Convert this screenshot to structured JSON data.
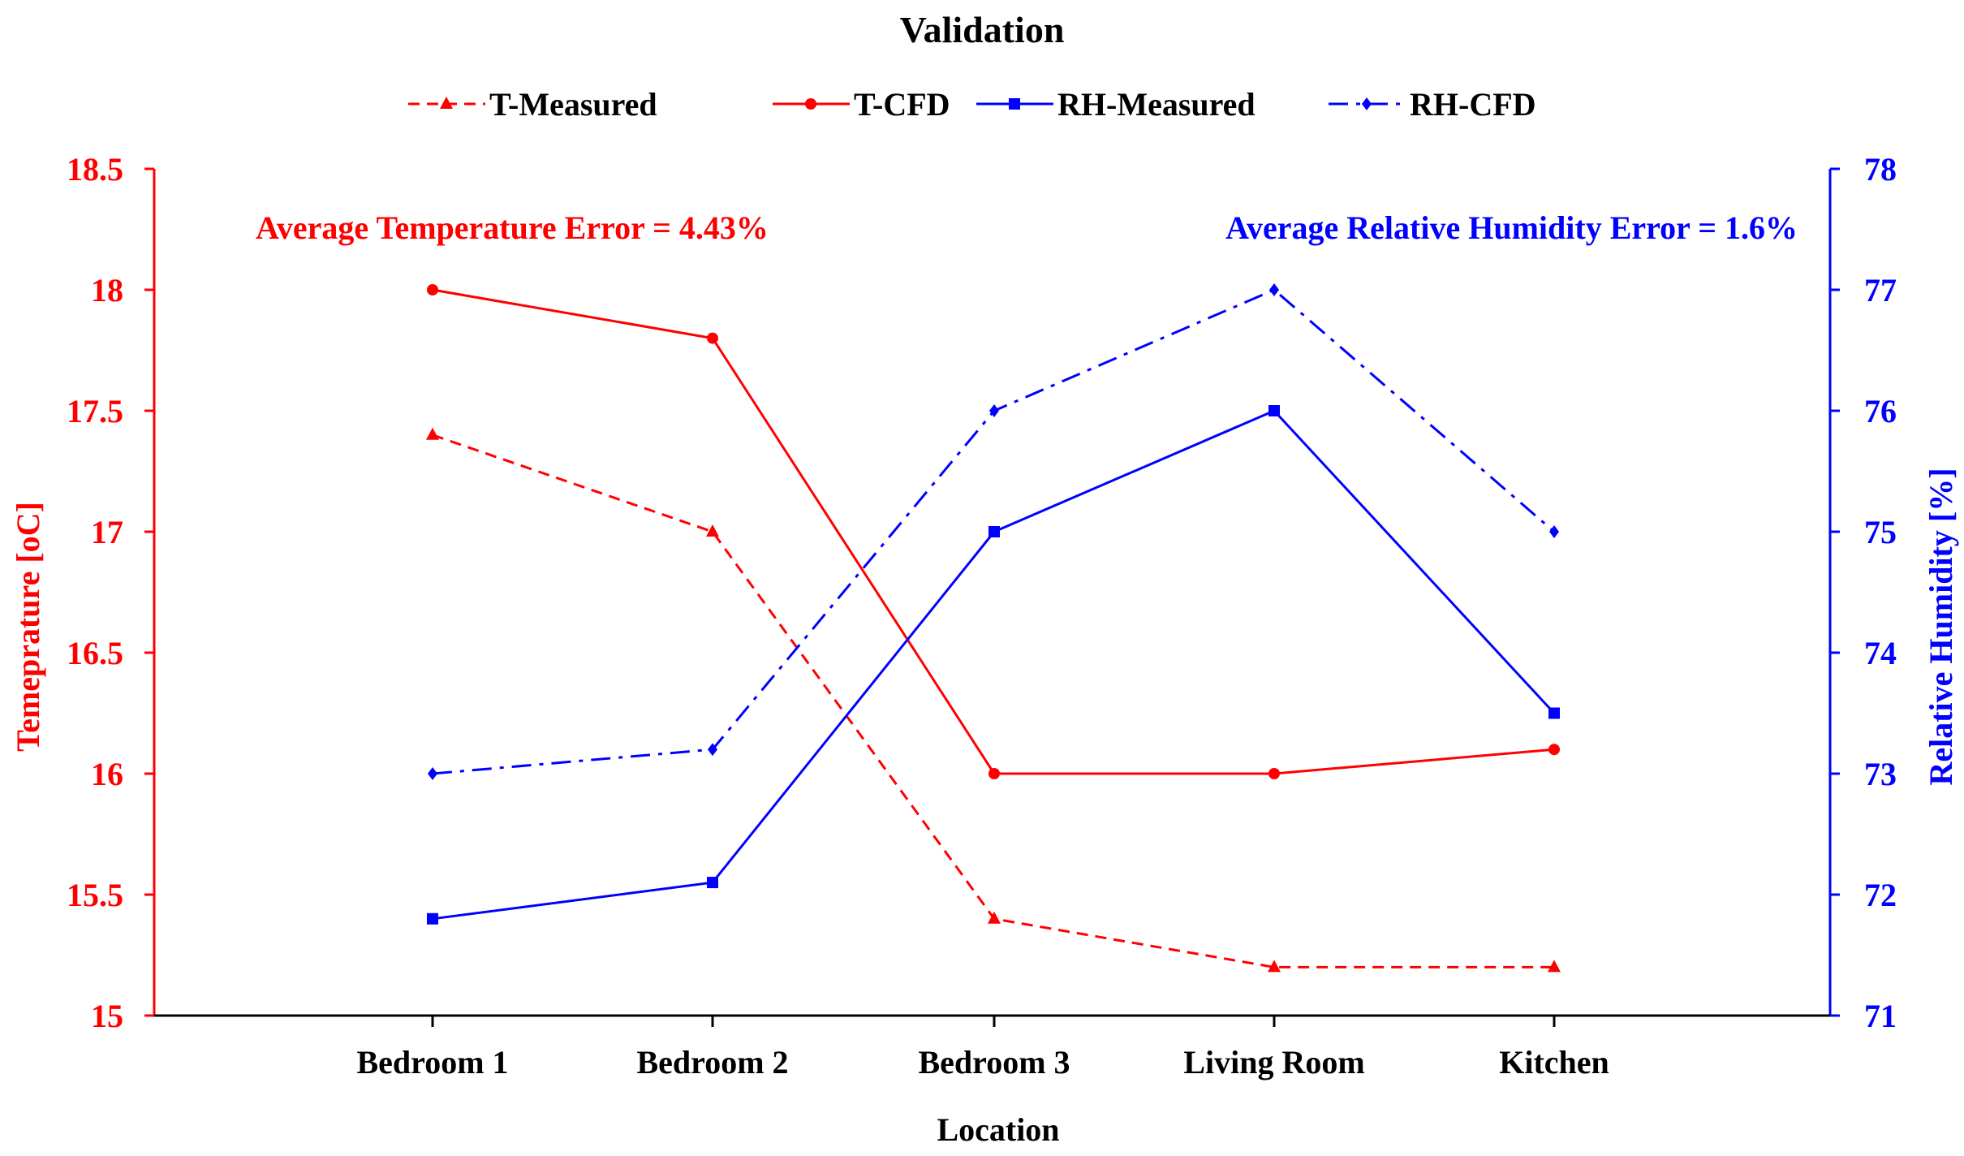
{
  "chart_data": {
    "type": "line",
    "title": "Validation",
    "xlabel": "Location",
    "ylabel_left": "Temeprature [oC]",
    "ylabel_right": "Relative Humidity [%]",
    "categories": [
      "Bedroom 1",
      "Bedroom 2",
      "Bedroom 3",
      "Living Room",
      "Kitchen"
    ],
    "ylim_left": [
      15,
      18.5
    ],
    "ylim_right": [
      71,
      78
    ],
    "yticks_left": [
      "15",
      "15.5",
      "16",
      "16.5",
      "17",
      "17.5",
      "18",
      "18.5"
    ],
    "yticks_right": [
      "71",
      "72",
      "73",
      "74",
      "75",
      "76",
      "77",
      "78"
    ],
    "annotations": {
      "temperature_error": "Average Temperature Error = 4.43%",
      "humidity_error": "Average Relative Humidity Error = 1.6%"
    },
    "series": [
      {
        "name": "T-Measured",
        "axis": "left",
        "color": "#ff0000",
        "dash": "dashed",
        "marker": "triangle",
        "values": [
          17.4,
          17.0,
          15.4,
          15.2,
          15.2
        ]
      },
      {
        "name": "T-CFD",
        "axis": "left",
        "color": "#ff0000",
        "dash": "solid",
        "marker": "circle",
        "values": [
          18.0,
          17.8,
          16.0,
          16.0,
          16.1
        ]
      },
      {
        "name": "RH-Measured",
        "axis": "right",
        "color": "#0000ff",
        "dash": "solid",
        "marker": "square",
        "values": [
          71.8,
          72.1,
          75.0,
          76.0,
          73.5
        ]
      },
      {
        "name": "RH-CFD",
        "axis": "right",
        "color": "#0000ff",
        "dash": "dashdot",
        "marker": "diamond",
        "values": [
          73.0,
          73.2,
          76.0,
          77.0,
          75.0
        ]
      }
    ]
  }
}
